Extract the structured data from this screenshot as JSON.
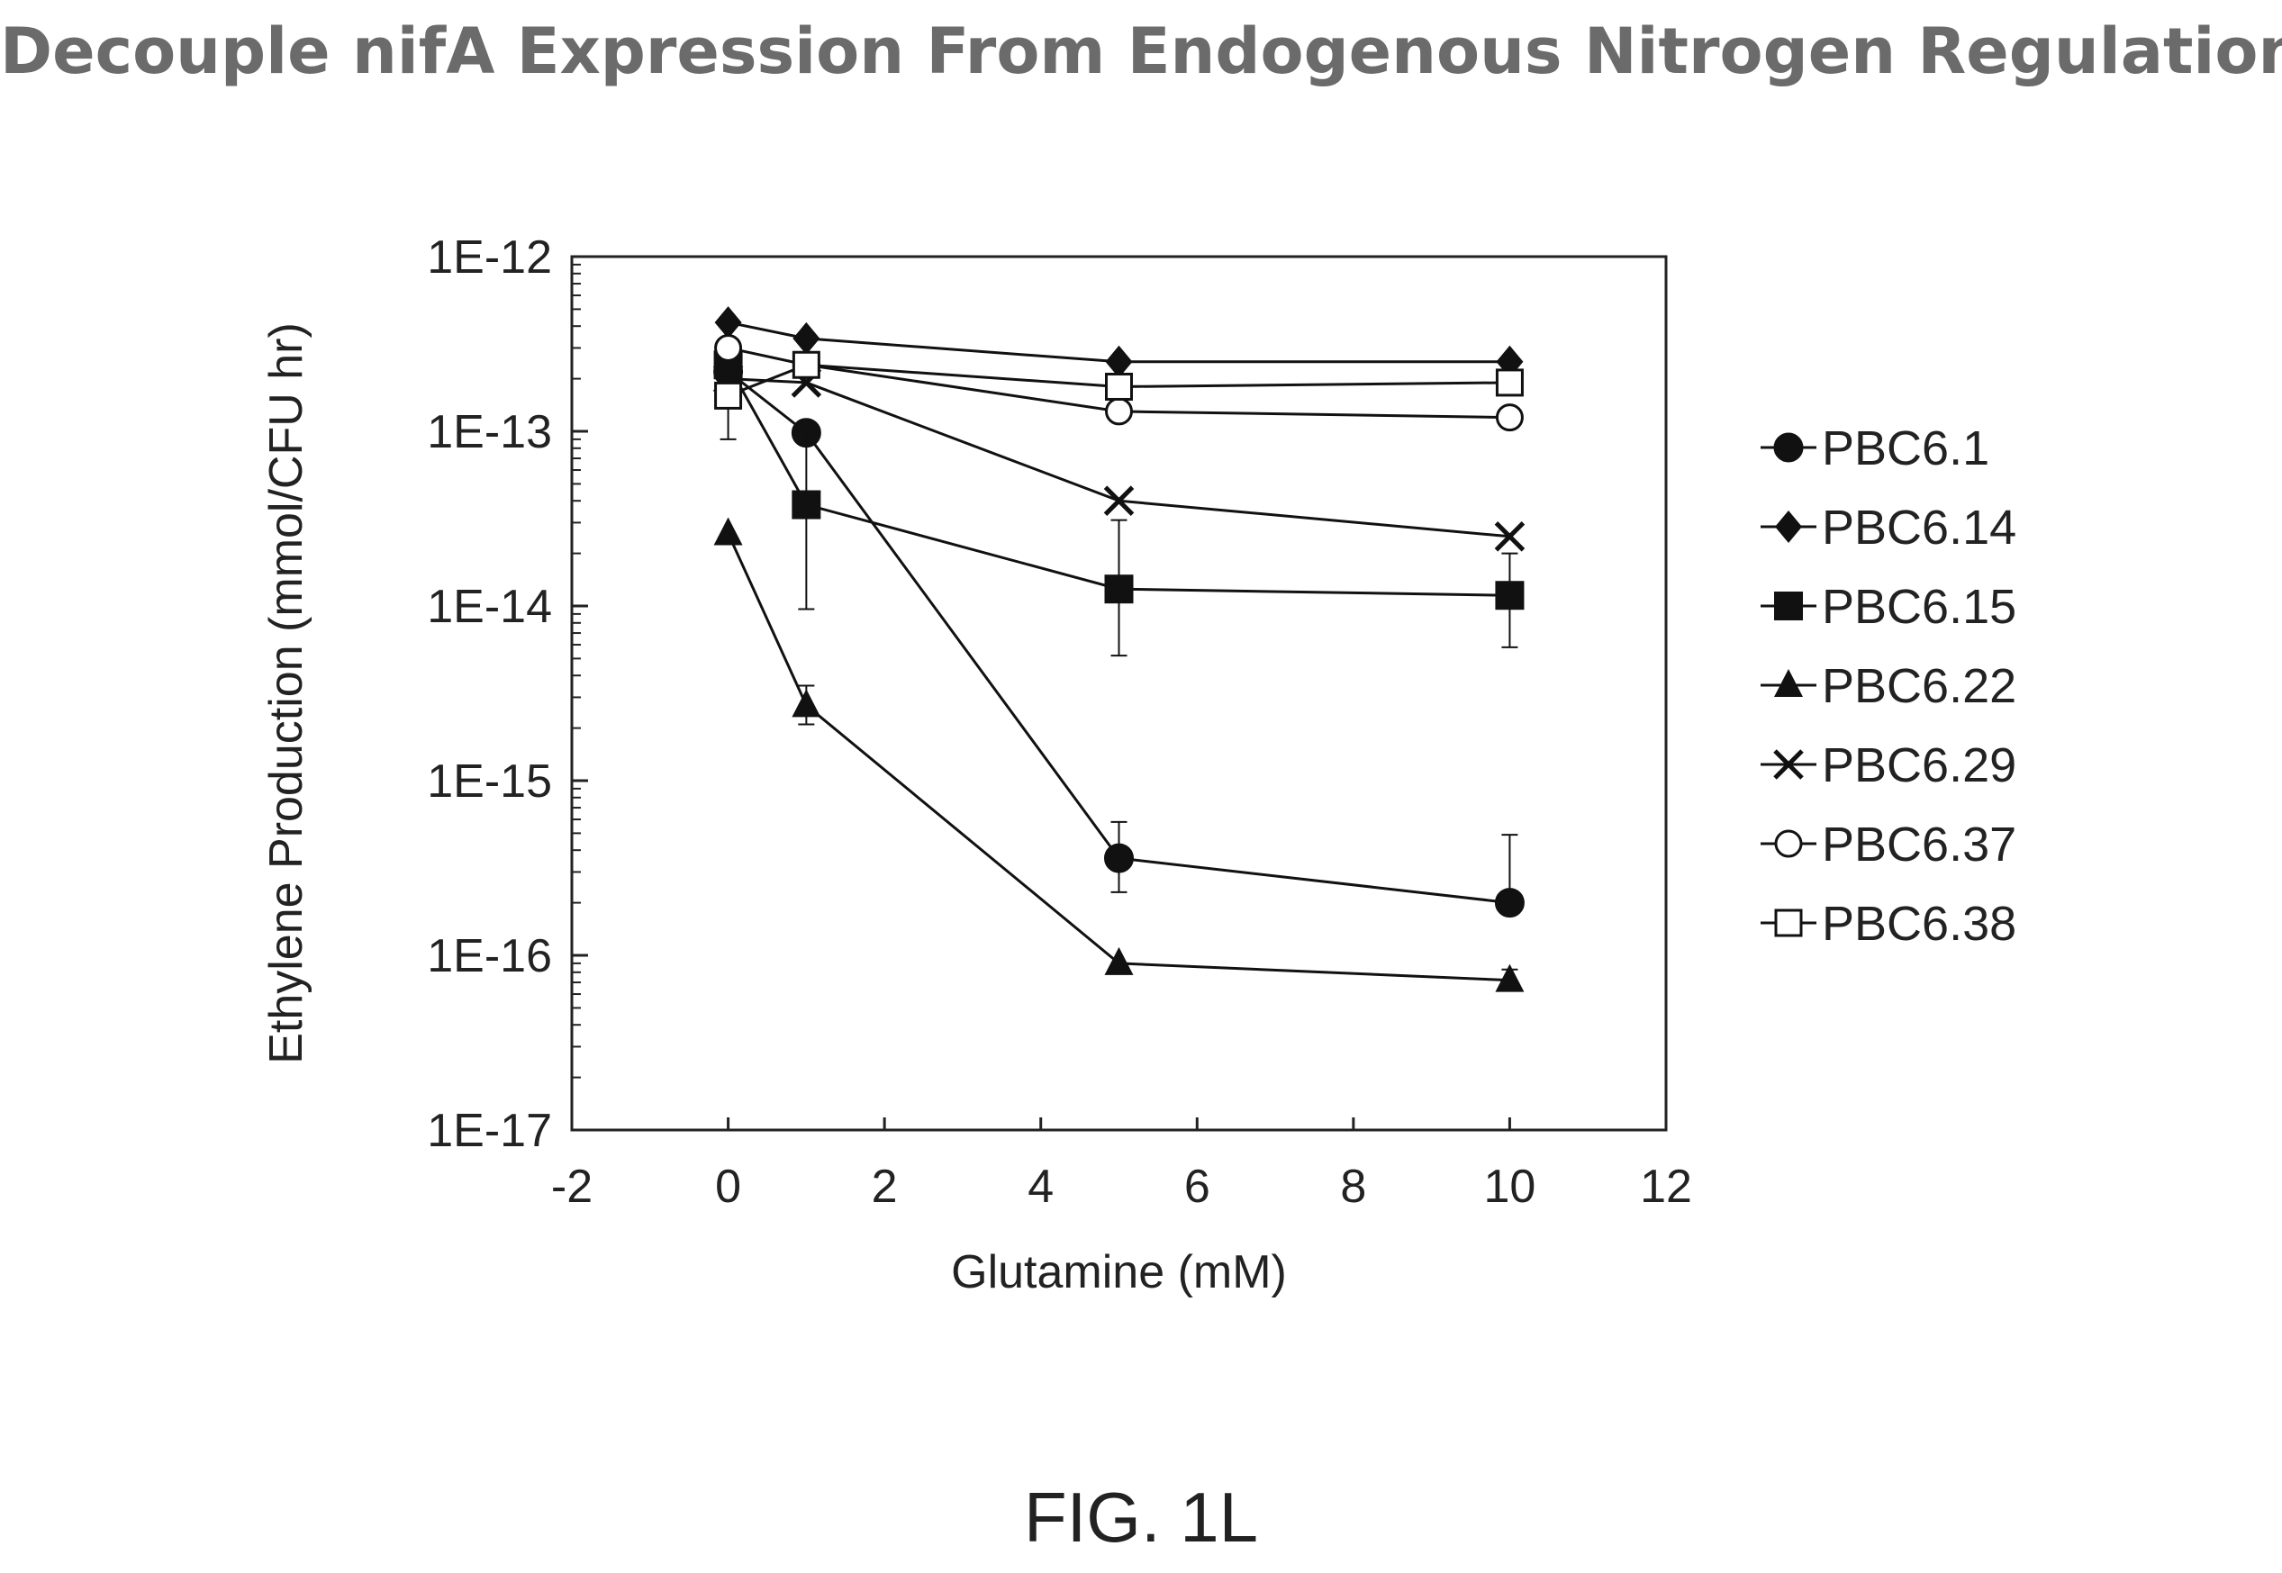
{
  "figure": {
    "title": "Decouple nifA Expression From Endogenous Nitrogen Regulation",
    "label": "FIG. 1L"
  },
  "chart_data": {
    "type": "line",
    "xlabel": "Glutamine (mM)",
    "ylabel": "Ethylene Production (mmol/CFU hr)",
    "xlim": [
      -2,
      12
    ],
    "ylim": [
      1e-17,
      1e-12
    ],
    "yscale": "log",
    "x_ticks": [
      -2,
      0,
      2,
      4,
      6,
      8,
      10,
      12
    ],
    "x_tick_labels": [
      "-2",
      "0",
      "2",
      "4",
      "6",
      "8",
      "10",
      "12"
    ],
    "y_ticks": [
      1e-12,
      1e-13,
      1e-14,
      1e-15,
      1e-16,
      1e-17
    ],
    "y_tick_labels": [
      "1E-12",
      "1E-13",
      "1E-14",
      "1E-15",
      "1E-16",
      "1E-17"
    ],
    "grid": false,
    "legend_position": "right",
    "x": [
      0,
      1,
      5,
      10
    ],
    "series": [
      {
        "name": "PBC6.1",
        "marker": "filled-circle",
        "values": [
          2.2e-13,
          9.8e-14,
          3.6e-16,
          2e-16
        ],
        "error_low": [
          null,
          null,
          2.3e-16,
          null
        ],
        "error_high": [
          null,
          null,
          5.8e-16,
          4.9e-16
        ]
      },
      {
        "name": "PBC6.14",
        "marker": "filled-diamond",
        "values": [
          4.2e-13,
          3.4e-13,
          2.5e-13,
          2.5e-13
        ],
        "error_low": [
          null,
          null,
          null,
          null
        ],
        "error_high": [
          null,
          null,
          null,
          null
        ]
      },
      {
        "name": "PBC6.15",
        "marker": "filled-square",
        "values": [
          2.4e-13,
          3.8e-14,
          1.25e-14,
          1.15e-14
        ],
        "error_low": [
          null,
          9.6e-15,
          5.2e-15,
          5.8e-15
        ],
        "error_high": [
          null,
          1e-13,
          3.1e-14,
          2e-14
        ]
      },
      {
        "name": "PBC6.22",
        "marker": "filled-triangle",
        "values": [
          2.6e-14,
          2.7e-15,
          9e-17,
          7.2e-17
        ],
        "error_low": [
          null,
          2.1e-15,
          null,
          null
        ],
        "error_high": [
          null,
          3.5e-15,
          null,
          8.3e-17
        ]
      },
      {
        "name": "PBC6.29",
        "marker": "cross",
        "values": [
          2e-13,
          1.9e-13,
          4e-14,
          2.5e-14
        ],
        "error_low": [
          null,
          null,
          null,
          null
        ],
        "error_high": [
          null,
          null,
          null,
          null
        ]
      },
      {
        "name": "PBC6.37",
        "marker": "open-circle",
        "values": [
          3e-13,
          2.4e-13,
          1.3e-13,
          1.2e-13
        ],
        "error_low": [
          null,
          null,
          null,
          null
        ],
        "error_high": [
          null,
          null,
          null,
          null
        ]
      },
      {
        "name": "PBC6.38",
        "marker": "open-square",
        "values": [
          1.6e-13,
          2.4e-13,
          1.8e-13,
          1.9e-13
        ],
        "error_low": [
          9e-14,
          null,
          null,
          null
        ],
        "error_high": [
          null,
          null,
          null,
          null
        ]
      }
    ]
  }
}
